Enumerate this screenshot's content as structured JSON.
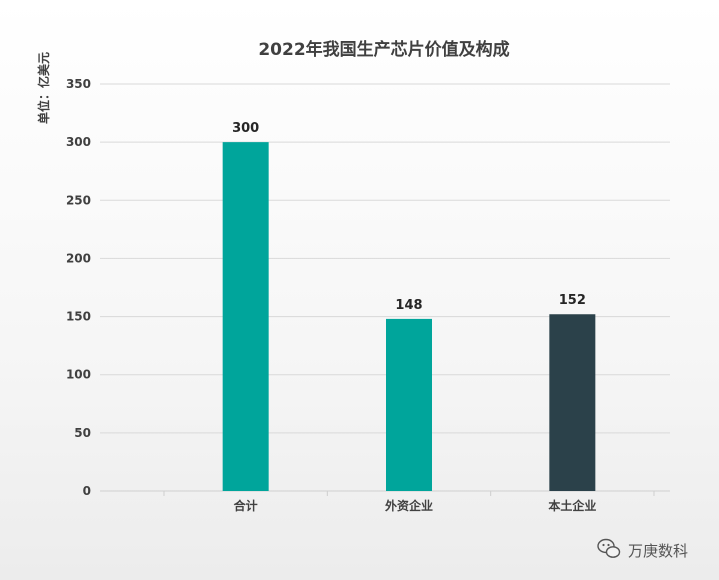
{
  "chart_data": {
    "type": "bar",
    "title": "2022年我国生产芯片价值及构成",
    "ylabel": "单位：亿美元",
    "xlabel": "",
    "categories": [
      "合计",
      "外资企业",
      "本土企业"
    ],
    "values": [
      300,
      148,
      152
    ],
    "colors": [
      "#00a59b",
      "#00a59b",
      "#2b414a"
    ],
    "ylim": [
      0,
      350
    ],
    "yticks": [
      0,
      50,
      100,
      150,
      200,
      250,
      300,
      350
    ],
    "grid": true,
    "data_labels": [
      "300",
      "148",
      "152"
    ]
  },
  "watermark": {
    "text": "万庚数科",
    "icon": "wechat-icon"
  }
}
